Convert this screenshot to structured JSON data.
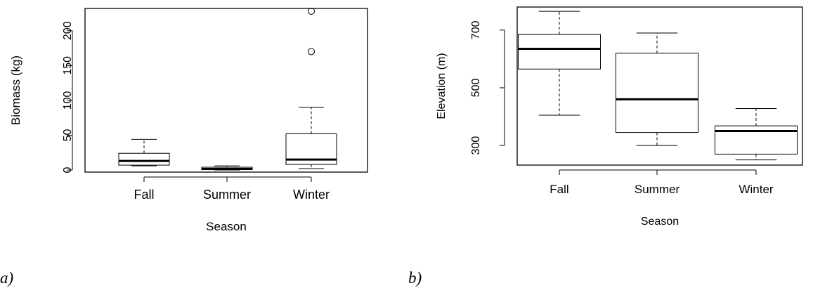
{
  "chart_data": [
    {
      "type": "box",
      "panel_label": "a)",
      "xlabel": "Season",
      "ylabel": "Biomass (kg)",
      "categories": [
        "Fall",
        "Summer",
        "Winter"
      ],
      "yticks": [
        0,
        50,
        100,
        150,
        200
      ],
      "ylim": [
        -3,
        232
      ],
      "boxes": [
        {
          "category": "Fall",
          "whisker_low": 6,
          "q1": 7,
          "median": 13,
          "q3": 24,
          "whisker_high": 44,
          "outliers": []
        },
        {
          "category": "Summer",
          "whisker_low": 0,
          "q1": 0.5,
          "median": 1.5,
          "q3": 4,
          "whisker_high": 6,
          "outliers": []
        },
        {
          "category": "Winter",
          "whisker_low": 2,
          "q1": 8,
          "median": 15,
          "q3": 52,
          "whisker_high": 90,
          "outliers": [
            170,
            228
          ]
        }
      ]
    },
    {
      "type": "box",
      "panel_label": "b)",
      "xlabel": "Season",
      "ylabel": "Elevation (m)",
      "categories": [
        "Fall",
        "Summer",
        "Winter"
      ],
      "yticks": [
        300,
        500,
        700
      ],
      "ylim": [
        232,
        780
      ],
      "boxes": [
        {
          "category": "Fall",
          "whisker_low": 405,
          "q1": 565,
          "median": 635,
          "q3": 685,
          "whisker_high": 765,
          "outliers": []
        },
        {
          "category": "Summer",
          "whisker_low": 300,
          "q1": 345,
          "median": 460,
          "q3": 620,
          "whisker_high": 690,
          "outliers": []
        },
        {
          "category": "Winter",
          "whisker_low": 250,
          "q1": 270,
          "median": 350,
          "q3": 368,
          "whisker_high": 428,
          "outliers": []
        }
      ]
    }
  ]
}
